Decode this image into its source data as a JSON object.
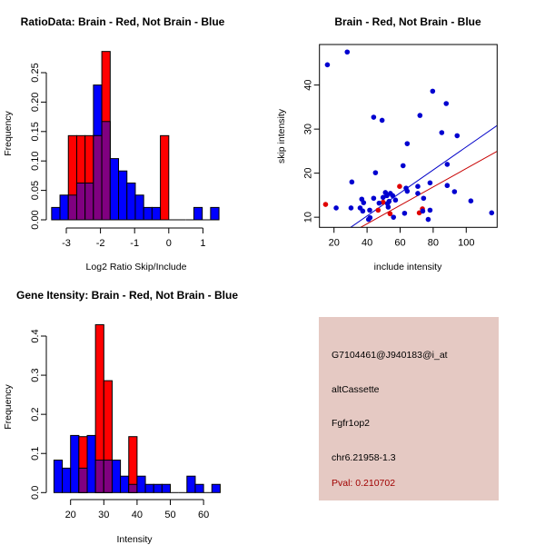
{
  "colors": {
    "blue": "#0000ff",
    "red": "#ff0000",
    "overlap": "#800080",
    "panel_bg": "#e5c9c3",
    "pval": "#a00000"
  },
  "chart_data": [
    {
      "type": "bar",
      "subtype": "overlaid-histogram",
      "title": "RatioData: Brain - Red, Not Brain - Blue",
      "xlabel": "Log2 Ratio Skip/Include",
      "ylabel": "Frequency",
      "bin_start": -3.43,
      "bin_width": 0.245,
      "series": [
        {
          "name": "Not Brain",
          "color": "blue",
          "values": [
            0.021,
            0.042,
            0.042,
            0.0625,
            0.0625,
            0.229,
            0.167,
            0.104,
            0.083,
            0.0625,
            0.042,
            0.021,
            0.021,
            0,
            0,
            0,
            0,
            0.021,
            0,
            0.021
          ]
        },
        {
          "name": "Brain",
          "color": "red",
          "values": [
            0,
            0,
            0.143,
            0.143,
            0.143,
            0.143,
            0.286,
            0,
            0,
            0,
            0,
            0,
            0,
            0.143,
            0,
            0,
            0,
            0,
            0,
            0
          ]
        }
      ],
      "xticks": [
        "-3",
        "-2",
        "-1",
        "0",
        "1"
      ],
      "xtick_values": [
        -3,
        -2,
        -1,
        0,
        1
      ],
      "yticks": [
        "0.00",
        "0.05",
        "0.10",
        "0.15",
        "0.20",
        "0.25"
      ],
      "ytick_values": [
        0,
        0.05,
        0.1,
        0.15,
        0.2,
        0.25
      ]
    },
    {
      "type": "scatter",
      "title": "Brain - Red, Not Brain - Blue",
      "xlabel": "include intensity",
      "ylabel": "skip intensity",
      "xlim": [
        11.2,
        118.7
      ],
      "ylim": [
        7.7,
        49.2
      ],
      "xticks": [
        "20",
        "40",
        "60",
        "80",
        "100"
      ],
      "xtick_values": [
        20,
        40,
        60,
        80,
        100
      ],
      "yticks": [
        "10",
        "20",
        "30",
        "40"
      ],
      "ytick_values": [
        10,
        20,
        30,
        40
      ],
      "series": [
        {
          "name": "Not Brain",
          "color": "blue",
          "points": [
            [
              16,
              44.6
            ],
            [
              28,
              47.5
            ],
            [
              21.3,
              12.1
            ],
            [
              30.8,
              18
            ],
            [
              30.3,
              12.1
            ],
            [
              35.8,
              12.1
            ],
            [
              36.8,
              14.1
            ],
            [
              37.4,
              11.4
            ],
            [
              37.9,
              13.3
            ],
            [
              41.6,
              11.6
            ],
            [
              40.9,
              9.5
            ],
            [
              41.8,
              9.9
            ],
            [
              44,
              14.3
            ],
            [
              44,
              32.7
            ],
            [
              45.1,
              20.1
            ],
            [
              49.1,
              32
            ],
            [
              49.7,
              14.5
            ],
            [
              47.3,
              13.2
            ],
            [
              51.1,
              15.6
            ],
            [
              52,
              14.9
            ],
            [
              52.4,
              13.1
            ],
            [
              53.3,
              13.6
            ],
            [
              52.8,
              12.3
            ],
            [
              54.1,
              15.4
            ],
            [
              55.5,
              14.9
            ],
            [
              56,
              10
            ],
            [
              57.2,
              13.9
            ],
            [
              61.8,
              21.7
            ],
            [
              62.7,
              10.9
            ],
            [
              63.6,
              16.6
            ],
            [
              64.3,
              15.9
            ],
            [
              64.3,
              26.7
            ],
            [
              70.7,
              17
            ],
            [
              70.7,
              15.4
            ],
            [
              72,
              33.1
            ],
            [
              73.7,
              11.4
            ],
            [
              74.2,
              14.3
            ],
            [
              78.1,
              17.8
            ],
            [
              78.1,
              11.6
            ],
            [
              77,
              9.5
            ],
            [
              79.7,
              38.6
            ],
            [
              85.2,
              29.2
            ],
            [
              87.9,
              35.8
            ],
            [
              88.5,
              22
            ],
            [
              88.5,
              17.2
            ],
            [
              94.5,
              28.5
            ],
            [
              92.9,
              15.8
            ],
            [
              102.8,
              13.7
            ],
            [
              115.4,
              11
            ]
          ],
          "fit": {
            "slope": 0.261,
            "intercept": -0.15
          }
        },
        {
          "name": "Brain",
          "color": "red",
          "points": [
            [
              14.9,
              12.9
            ],
            [
              46.7,
              11.6
            ],
            [
              49.7,
              13.4
            ],
            [
              53.9,
              10.8
            ],
            [
              59.7,
              17
            ],
            [
              71.6,
              11
            ],
            [
              73.5,
              11.9
            ]
          ],
          "fit": {
            "slope": 0.209,
            "intercept": 0.15
          }
        }
      ]
    },
    {
      "type": "bar",
      "subtype": "overlaid-histogram",
      "title": "Gene Itensity: Brain - Red, Not Brain - Blue",
      "xlabel": "Intensity",
      "ylabel": "Frequency",
      "bin_start": 15,
      "bin_width": 2.5,
      "series": [
        {
          "name": "Not Brain",
          "color": "blue",
          "values": [
            0.083,
            0.0625,
            0.146,
            0.0625,
            0.146,
            0.083,
            0.083,
            0.083,
            0.042,
            0.021,
            0.042,
            0.021,
            0.021,
            0.021,
            0,
            0,
            0.042,
            0.021,
            0,
            0.021
          ]
        },
        {
          "name": "Brain",
          "color": "red",
          "values": [
            0,
            0,
            0,
            0.143,
            0,
            0.429,
            0.286,
            0,
            0,
            0.143,
            0,
            0,
            0,
            0,
            0,
            0,
            0,
            0,
            0,
            0
          ]
        }
      ],
      "xticks": [
        "20",
        "30",
        "40",
        "50",
        "60"
      ],
      "xtick_values": [
        20,
        30,
        40,
        50,
        60
      ],
      "yticks": [
        "0.0",
        "0.1",
        "0.2",
        "0.3",
        "0.4"
      ],
      "ytick_values": [
        0,
        0.1,
        0.2,
        0.3,
        0.4
      ]
    }
  ],
  "info": {
    "probe": "G7104461@J940183@i_at",
    "event_type": "altCassette",
    "gene": "Fgfr1op2",
    "location": "chr6.21958-1.3",
    "pval": "Pval: 0.210702"
  }
}
